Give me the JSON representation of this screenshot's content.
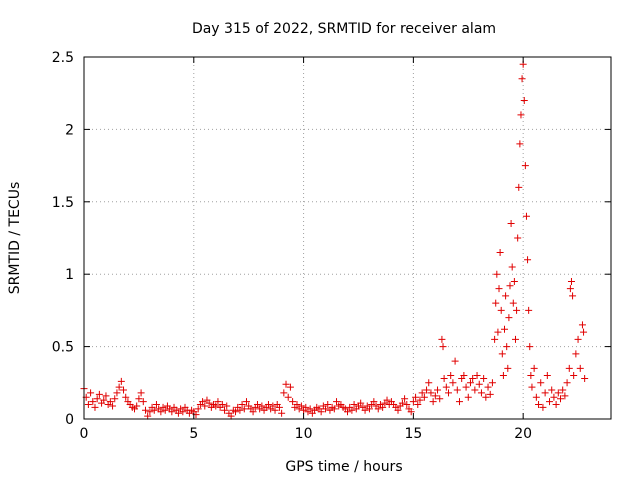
{
  "chart_data": {
    "type": "scatter",
    "title": "Day 315 of 2022, SRMTID for receiver alam",
    "xlabel": "GPS time / hours",
    "ylabel": "SRMTID / TECUs",
    "xlim": [
      0,
      24
    ],
    "ylim": [
      0,
      2.5
    ],
    "xticks": [
      0,
      5,
      10,
      15,
      20
    ],
    "xtick_labels": [
      "0",
      "5",
      "10",
      "15",
      "20"
    ],
    "yticks": [
      0,
      0.5,
      1,
      1.5,
      2,
      2.5
    ],
    "ytick_labels": [
      "0",
      "0.5",
      "1",
      "1.5",
      "2",
      "2.5"
    ],
    "grid": true,
    "marker": "+",
    "color": "#e00000",
    "series": [
      {
        "name": "SRMTID",
        "points": [
          [
            0.0,
            0.21
          ],
          [
            0.1,
            0.15
          ],
          [
            0.2,
            0.1
          ],
          [
            0.3,
            0.18
          ],
          [
            0.4,
            0.12
          ],
          [
            0.5,
            0.08
          ],
          [
            0.6,
            0.14
          ],
          [
            0.7,
            0.17
          ],
          [
            0.8,
            0.11
          ],
          [
            0.9,
            0.13
          ],
          [
            1.0,
            0.16
          ],
          [
            1.1,
            0.1
          ],
          [
            1.2,
            0.12
          ],
          [
            1.3,
            0.09
          ],
          [
            1.4,
            0.14
          ],
          [
            1.5,
            0.18
          ],
          [
            1.6,
            0.22
          ],
          [
            1.7,
            0.26
          ],
          [
            1.8,
            0.2
          ],
          [
            1.9,
            0.15
          ],
          [
            2.0,
            0.12
          ],
          [
            2.1,
            0.1
          ],
          [
            2.2,
            0.08
          ],
          [
            2.3,
            0.07
          ],
          [
            2.4,
            0.09
          ],
          [
            2.5,
            0.14
          ],
          [
            2.6,
            0.18
          ],
          [
            2.7,
            0.12
          ],
          [
            2.8,
            0.06
          ],
          [
            2.9,
            0.02
          ],
          [
            3.0,
            0.05
          ],
          [
            3.1,
            0.08
          ],
          [
            3.2,
            0.06
          ],
          [
            3.3,
            0.1
          ],
          [
            3.4,
            0.07
          ],
          [
            3.5,
            0.05
          ],
          [
            3.6,
            0.08
          ],
          [
            3.7,
            0.06
          ],
          [
            3.8,
            0.09
          ],
          [
            3.9,
            0.07
          ],
          [
            4.0,
            0.05
          ],
          [
            4.1,
            0.08
          ],
          [
            4.2,
            0.06
          ],
          [
            4.3,
            0.04
          ],
          [
            4.4,
            0.07
          ],
          [
            4.5,
            0.05
          ],
          [
            4.6,
            0.08
          ],
          [
            4.7,
            0.06
          ],
          [
            4.8,
            0.04
          ],
          [
            4.9,
            0.06
          ],
          [
            5.0,
            0.05
          ],
          [
            5.1,
            0.03
          ],
          [
            5.2,
            0.07
          ],
          [
            5.3,
            0.1
          ],
          [
            5.4,
            0.12
          ],
          [
            5.5,
            0.09
          ],
          [
            5.6,
            0.13
          ],
          [
            5.7,
            0.11
          ],
          [
            5.8,
            0.08
          ],
          [
            5.9,
            0.1
          ],
          [
            6.0,
            0.09
          ],
          [
            6.1,
            0.12
          ],
          [
            6.2,
            0.08
          ],
          [
            6.3,
            0.1
          ],
          [
            6.4,
            0.06
          ],
          [
            6.5,
            0.09
          ],
          [
            6.6,
            0.04
          ],
          [
            6.7,
            0.02
          ],
          [
            6.8,
            0.06
          ],
          [
            6.9,
            0.05
          ],
          [
            7.0,
            0.08
          ],
          [
            7.1,
            0.06
          ],
          [
            7.2,
            0.1
          ],
          [
            7.3,
            0.07
          ],
          [
            7.4,
            0.12
          ],
          [
            7.5,
            0.09
          ],
          [
            7.6,
            0.07
          ],
          [
            7.7,
            0.05
          ],
          [
            7.8,
            0.08
          ],
          [
            7.9,
            0.1
          ],
          [
            8.0,
            0.07
          ],
          [
            8.1,
            0.09
          ],
          [
            8.2,
            0.06
          ],
          [
            8.3,
            0.08
          ],
          [
            8.4,
            0.1
          ],
          [
            8.5,
            0.07
          ],
          [
            8.6,
            0.09
          ],
          [
            8.7,
            0.06
          ],
          [
            8.8,
            0.1
          ],
          [
            8.9,
            0.08
          ],
          [
            9.0,
            0.04
          ],
          [
            9.1,
            0.18
          ],
          [
            9.2,
            0.24
          ],
          [
            9.3,
            0.15
          ],
          [
            9.4,
            0.22
          ],
          [
            9.5,
            0.12
          ],
          [
            9.6,
            0.08
          ],
          [
            9.7,
            0.1
          ],
          [
            9.8,
            0.07
          ],
          [
            9.9,
            0.09
          ],
          [
            10.0,
            0.06
          ],
          [
            10.1,
            0.08
          ],
          [
            10.2,
            0.05
          ],
          [
            10.3,
            0.07
          ],
          [
            10.4,
            0.04
          ],
          [
            10.5,
            0.06
          ],
          [
            10.6,
            0.08
          ],
          [
            10.7,
            0.07
          ],
          [
            10.8,
            0.05
          ],
          [
            10.9,
            0.09
          ],
          [
            11.0,
            0.07
          ],
          [
            11.1,
            0.1
          ],
          [
            11.2,
            0.06
          ],
          [
            11.3,
            0.08
          ],
          [
            11.4,
            0.07
          ],
          [
            11.5,
            0.12
          ],
          [
            11.6,
            0.09
          ],
          [
            11.7,
            0.1
          ],
          [
            11.8,
            0.08
          ],
          [
            11.9,
            0.07
          ],
          [
            12.0,
            0.05
          ],
          [
            12.1,
            0.08
          ],
          [
            12.2,
            0.06
          ],
          [
            12.3,
            0.1
          ],
          [
            12.4,
            0.07
          ],
          [
            12.5,
            0.09
          ],
          [
            12.6,
            0.11
          ],
          [
            12.7,
            0.08
          ],
          [
            12.8,
            0.06
          ],
          [
            12.9,
            0.09
          ],
          [
            13.0,
            0.07
          ],
          [
            13.1,
            0.1
          ],
          [
            13.2,
            0.12
          ],
          [
            13.3,
            0.09
          ],
          [
            13.4,
            0.07
          ],
          [
            13.5,
            0.1
          ],
          [
            13.6,
            0.08
          ],
          [
            13.7,
            0.11
          ],
          [
            13.8,
            0.13
          ],
          [
            13.9,
            0.1
          ],
          [
            14.0,
            0.12
          ],
          [
            14.1,
            0.1
          ],
          [
            14.2,
            0.08
          ],
          [
            14.3,
            0.06
          ],
          [
            14.4,
            0.09
          ],
          [
            14.5,
            0.11
          ],
          [
            14.6,
            0.14
          ],
          [
            14.7,
            0.1
          ],
          [
            14.8,
            0.07
          ],
          [
            14.9,
            0.05
          ],
          [
            15.0,
            0.12
          ],
          [
            15.1,
            0.15
          ],
          [
            15.2,
            0.1
          ],
          [
            15.3,
            0.13
          ],
          [
            15.4,
            0.18
          ],
          [
            15.5,
            0.15
          ],
          [
            15.6,
            0.2
          ],
          [
            15.7,
            0.25
          ],
          [
            15.8,
            0.18
          ],
          [
            15.9,
            0.12
          ],
          [
            16.0,
            0.16
          ],
          [
            16.1,
            0.2
          ],
          [
            16.2,
            0.14
          ],
          [
            16.3,
            0.55
          ],
          [
            16.35,
            0.5
          ],
          [
            16.4,
            0.28
          ],
          [
            16.5,
            0.22
          ],
          [
            16.6,
            0.18
          ],
          [
            16.7,
            0.3
          ],
          [
            16.8,
            0.25
          ],
          [
            16.9,
            0.4
          ],
          [
            17.0,
            0.2
          ],
          [
            17.1,
            0.12
          ],
          [
            17.2,
            0.28
          ],
          [
            17.3,
            0.3
          ],
          [
            17.4,
            0.22
          ],
          [
            17.5,
            0.15
          ],
          [
            17.6,
            0.25
          ],
          [
            17.7,
            0.28
          ],
          [
            17.8,
            0.2
          ],
          [
            17.9,
            0.3
          ],
          [
            18.0,
            0.24
          ],
          [
            18.1,
            0.18
          ],
          [
            18.2,
            0.28
          ],
          [
            18.3,
            0.15
          ],
          [
            18.4,
            0.22
          ],
          [
            18.5,
            0.17
          ],
          [
            18.6,
            0.25
          ],
          [
            18.7,
            0.55
          ],
          [
            18.75,
            0.8
          ],
          [
            18.8,
            1.0
          ],
          [
            18.85,
            0.6
          ],
          [
            18.9,
            0.9
          ],
          [
            18.95,
            1.15
          ],
          [
            19.0,
            0.75
          ],
          [
            19.05,
            0.45
          ],
          [
            19.1,
            0.3
          ],
          [
            19.15,
            0.62
          ],
          [
            19.2,
            0.85
          ],
          [
            19.25,
            0.5
          ],
          [
            19.3,
            0.35
          ],
          [
            19.35,
            0.7
          ],
          [
            19.4,
            0.92
          ],
          [
            19.45,
            1.35
          ],
          [
            19.5,
            1.05
          ],
          [
            19.55,
            0.8
          ],
          [
            19.6,
            0.95
          ],
          [
            19.65,
            0.55
          ],
          [
            19.7,
            0.75
          ],
          [
            19.75,
            1.25
          ],
          [
            19.8,
            1.6
          ],
          [
            19.85,
            1.9
          ],
          [
            19.9,
            2.1
          ],
          [
            19.95,
            2.35
          ],
          [
            20.0,
            2.45
          ],
          [
            20.05,
            2.2
          ],
          [
            20.1,
            1.75
          ],
          [
            20.15,
            1.4
          ],
          [
            20.2,
            1.1
          ],
          [
            20.25,
            0.75
          ],
          [
            20.3,
            0.5
          ],
          [
            20.35,
            0.3
          ],
          [
            20.4,
            0.22
          ],
          [
            20.5,
            0.35
          ],
          [
            20.6,
            0.15
          ],
          [
            20.7,
            0.1
          ],
          [
            20.8,
            0.25
          ],
          [
            20.9,
            0.08
          ],
          [
            21.0,
            0.18
          ],
          [
            21.1,
            0.3
          ],
          [
            21.2,
            0.12
          ],
          [
            21.3,
            0.2
          ],
          [
            21.4,
            0.15
          ],
          [
            21.5,
            0.1
          ],
          [
            21.6,
            0.18
          ],
          [
            21.7,
            0.14
          ],
          [
            21.8,
            0.2
          ],
          [
            21.9,
            0.16
          ],
          [
            22.0,
            0.25
          ],
          [
            22.1,
            0.35
          ],
          [
            22.15,
            0.9
          ],
          [
            22.2,
            0.95
          ],
          [
            22.25,
            0.85
          ],
          [
            22.3,
            0.3
          ],
          [
            22.4,
            0.45
          ],
          [
            22.5,
            0.55
          ],
          [
            22.6,
            0.35
          ],
          [
            22.7,
            0.65
          ],
          [
            22.75,
            0.6
          ],
          [
            22.8,
            0.28
          ]
        ]
      }
    ]
  }
}
